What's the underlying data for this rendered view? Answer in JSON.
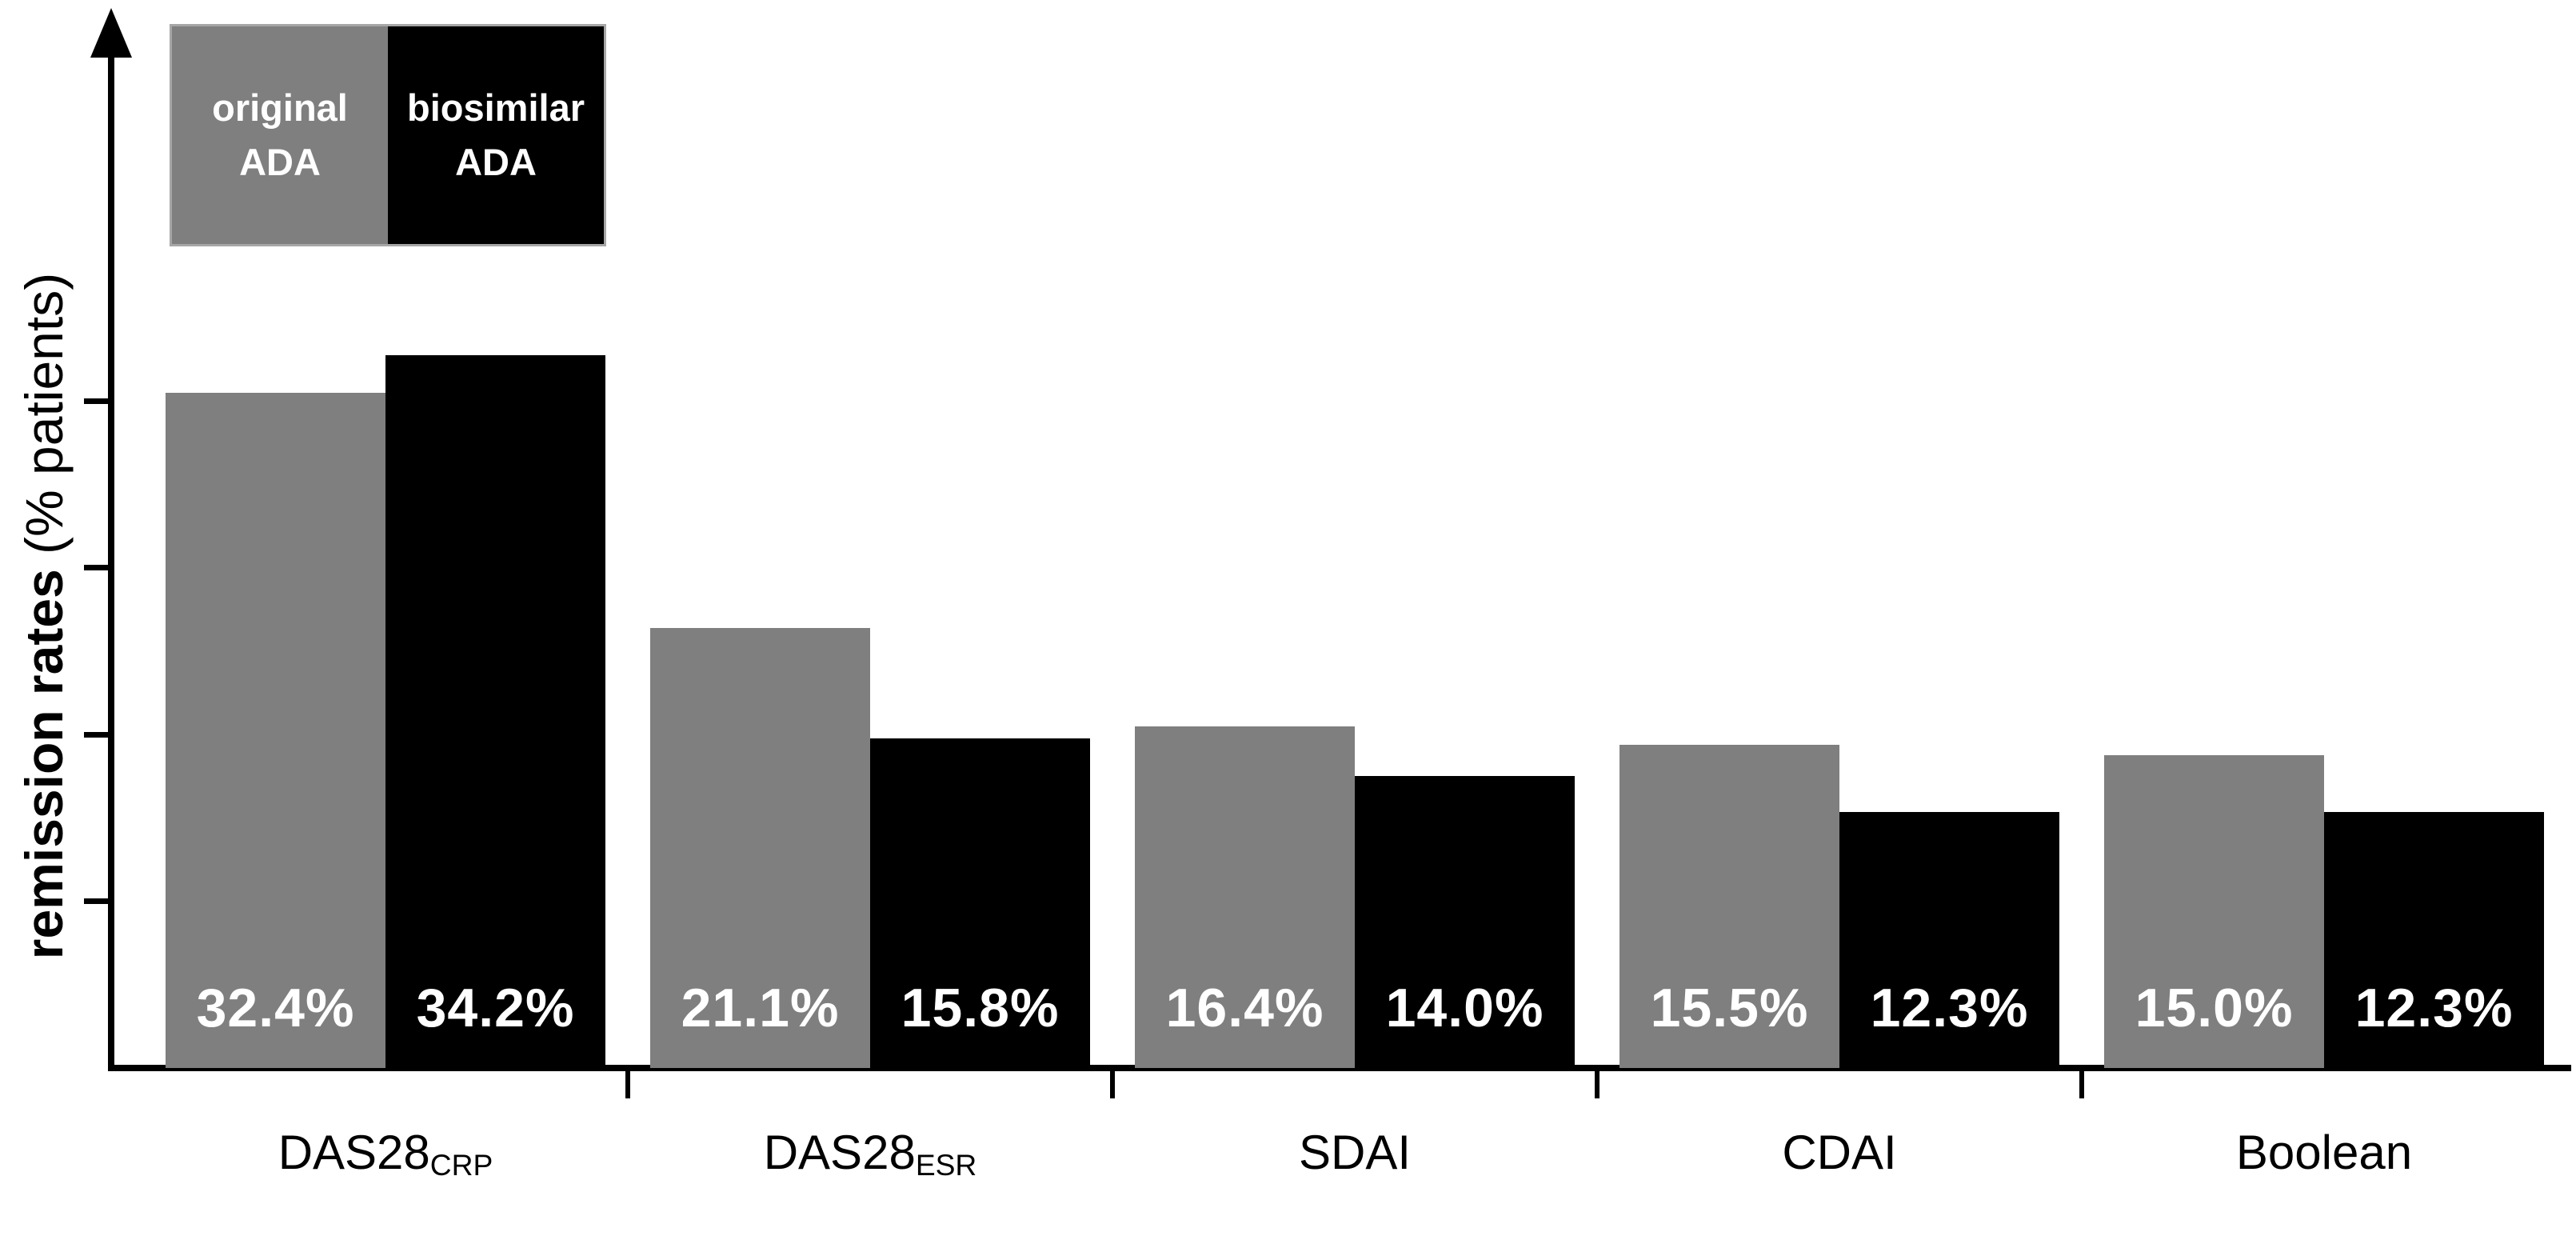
{
  "chart_data": {
    "type": "bar",
    "title": "",
    "ylabel": {
      "bold": "remission rates",
      "regular": " (% patients)"
    },
    "categories": [
      {
        "base": "DAS28",
        "sub": "CRP"
      },
      {
        "base": "DAS28",
        "sub": "ESR"
      },
      {
        "base": "SDAI",
        "sub": ""
      },
      {
        "base": "CDAI",
        "sub": ""
      },
      {
        "base": "Boolean",
        "sub": ""
      }
    ],
    "series": [
      {
        "name": "original ADA",
        "color": "#7f7f7f",
        "values": [
          32.4,
          21.1,
          16.4,
          15.5,
          15.0
        ]
      },
      {
        "name": "biosimilar ADA",
        "color": "#000000",
        "values": [
          34.2,
          15.8,
          14.0,
          12.3,
          12.3
        ]
      }
    ],
    "value_labels": [
      "32.4%",
      "34.2%",
      "21.1%",
      "15.8%",
      "16.4%",
      "14.0%",
      "15.5%",
      "12.3%",
      "15.0%",
      "12.3%"
    ],
    "value_suffix": "%",
    "ylim": [
      0,
      50
    ],
    "yticks": [
      8,
      16,
      24,
      32
    ],
    "yticks_labeled": false,
    "grid": false,
    "legend_position": "top-left"
  },
  "legend": {
    "original": {
      "line1": "original",
      "line2": "ADA"
    },
    "biosimilar": {
      "line1": "biosimilar",
      "line2": "ADA"
    }
  }
}
